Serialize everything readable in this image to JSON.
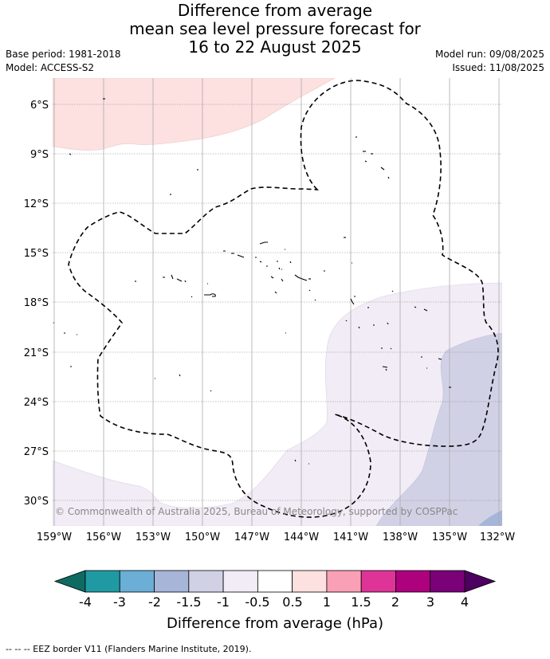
{
  "title_lines": [
    "Difference from average",
    "mean sea level pressure forecast for",
    "16 to 22 August 2025"
  ],
  "base_period": "Base period: 1981-2018",
  "model": "Model: ACCESS-S2",
  "model_run": "Model run: 09/08/2025",
  "issued": "Issued: 11/08/2025",
  "copyright": "© Commonwealth of Australia 2025, Bureau of Meteorology, supported by COSPPac",
  "lat_labels": [
    "6°S",
    "9°S",
    "12°S",
    "15°S",
    "18°S",
    "21°S",
    "24°S",
    "27°S",
    "30°S"
  ],
  "lon_labels": [
    "159°W",
    "156°W",
    "153°W",
    "150°W",
    "147°W",
    "144°W",
    "141°W",
    "138°W",
    "135°W",
    "132°W"
  ],
  "colorbar": {
    "title": "Difference from average (hPa)",
    "tick_labels": [
      "-4",
      "-3",
      "-2",
      "-1.5",
      "-1",
      "-0.5",
      "0.5",
      "1",
      "1.5",
      "2",
      "3",
      "4"
    ],
    "colors": [
      "#0e6b62",
      "#1f9aa2",
      "#6baed6",
      "#a6b5d8",
      "#d1d1e6",
      "#f1ecf5",
      "#ffffff",
      "#fde0e0",
      "#f9a0b7",
      "#de3497",
      "#ad017e",
      "#7a0177",
      "#4d0060"
    ]
  },
  "footer": "--  --  -- EEZ border V11 (Flanders Marine Institute, 2019)."
}
